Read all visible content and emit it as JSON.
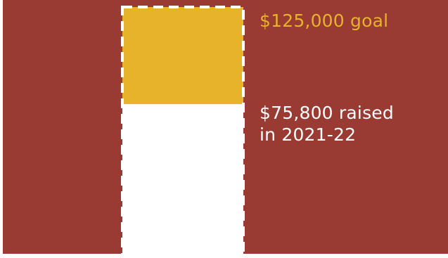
{
  "chart_data": {
    "type": "bar",
    "goal": 125000,
    "raised": 75800,
    "goal_label": "$125,000 goal",
    "raised_label_line1": "$75,800 raised",
    "raised_label_line2": "in 2021-22"
  },
  "colors": {
    "background": "#993a33",
    "goal_fill": "#e6b32a",
    "raised_fill": "#ffffff",
    "goal_outline": "#ffffff",
    "goal_text": "#e6b32a",
    "raised_text": "#ffffff"
  }
}
